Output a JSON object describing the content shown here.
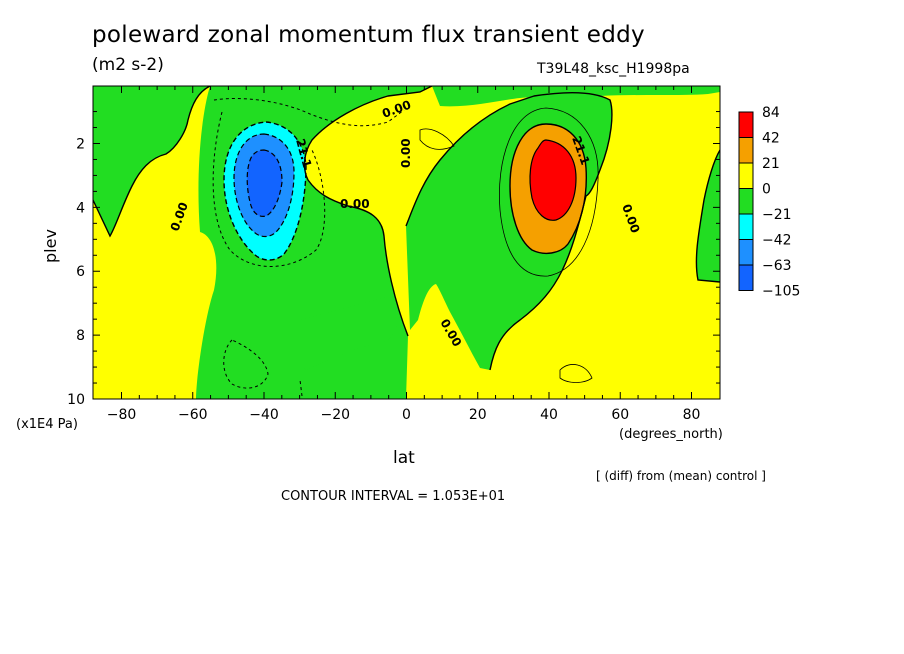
{
  "chart_data": {
    "type": "contour",
    "title": "poleward zonal momentum flux transient eddy",
    "units": "(m2 s-2)",
    "run_label": "T39L48_ksc_H1998pa",
    "subtitle": "[ (diff) from (mean) control ]",
    "contour_interval_text": "CONTOUR INTERVAL = 1.053E+01",
    "xlabel": "lat",
    "xunit": "(degrees_north)",
    "ylabel": "plev",
    "yunit": "(x1E4 Pa)",
    "xlim": [
      -88,
      88
    ],
    "ylim": [
      10,
      0.2
    ],
    "x_ticks": [
      -80,
      -60,
      -40,
      -20,
      0,
      20,
      40,
      60,
      80
    ],
    "y_ticks": [
      2,
      4,
      6,
      8,
      10
    ],
    "contour_labels": [
      "0.00",
      "0.00",
      "0.00",
      "0.00",
      "0.00",
      "0.00",
      "21.1",
      "21.1"
    ],
    "colorbar": {
      "levels": [
        "84",
        "42",
        "21",
        "0",
        "-21",
        "-42",
        "-63",
        "-105"
      ],
      "colors": [
        "#ff0000",
        "#f5a000",
        "#ffff00",
        "#22dd22",
        "#00ffff",
        "#1e90ff",
        "#1264ff"
      ]
    },
    "features": [
      {
        "name": "negative-center",
        "lat": -40,
        "plev": 3,
        "min_band": "-105 to -63"
      },
      {
        "name": "positive-center",
        "lat": 40,
        "plev": 3,
        "max_band": "42 to 84"
      }
    ]
  }
}
